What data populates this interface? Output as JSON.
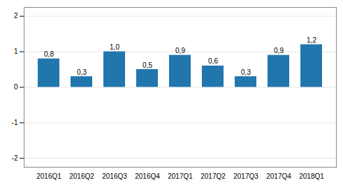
{
  "chart_data": {
    "type": "bar",
    "categories": [
      "2016Q1",
      "2016Q2",
      "2016Q3",
      "2016Q4",
      "2017Q1",
      "2017Q2",
      "2017Q3",
      "2017Q4",
      "2018Q1"
    ],
    "values": [
      0.8,
      0.3,
      1.0,
      0.5,
      0.9,
      0.6,
      0.3,
      0.9,
      1.2
    ],
    "value_labels": [
      "0,8",
      "0,3",
      "1,0",
      "0,5",
      "0,9",
      "0,6",
      "0,3",
      "0,9",
      "1,2"
    ],
    "data_labels": true,
    "color": "#2176AE",
    "ylim": [
      -2.25,
      2.25
    ],
    "yticks": [
      -2,
      -1,
      0,
      1,
      2
    ],
    "grid": true
  }
}
